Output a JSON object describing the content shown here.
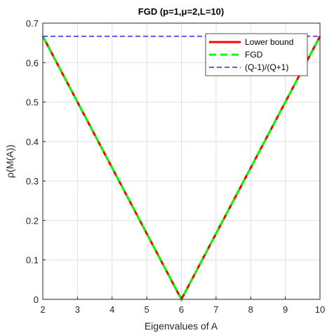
{
  "chart_data": {
    "type": "line",
    "title": "FGD (p=1,μ=2,L=10)",
    "xlabel": "Eigenvalues of A",
    "ylabel": "ρ(M(A))",
    "xlim": [
      2,
      10
    ],
    "ylim": [
      0,
      0.7
    ],
    "xticks": [
      2,
      3,
      4,
      5,
      6,
      7,
      8,
      9,
      10
    ],
    "yticks": [
      0,
      0.1,
      0.2,
      0.3,
      0.4,
      0.5,
      0.6,
      0.7
    ],
    "xtick_labels": [
      "2",
      "3",
      "4",
      "5",
      "6",
      "7",
      "8",
      "9",
      "10"
    ],
    "ytick_labels": [
      "0",
      "0.1",
      "0.2",
      "0.3",
      "0.4",
      "0.5",
      "0.6",
      "0.7"
    ],
    "grid": true,
    "legend_position": "top-right",
    "series": [
      {
        "name": "Lower bound",
        "color": "#ff0000",
        "style": "solid",
        "x": [
          2,
          6,
          10
        ],
        "y": [
          0.6667,
          0,
          0.6667
        ]
      },
      {
        "name": "FGD",
        "color": "#00ff00",
        "style": "dashed",
        "x": [
          2,
          6,
          10
        ],
        "y": [
          0.6667,
          0,
          0.6667
        ]
      },
      {
        "name": "(Q-1)/(Q+1)",
        "color": "#0000ff",
        "style": "dashed-thin",
        "x": [
          2,
          10
        ],
        "y": [
          0.6667,
          0.6667
        ]
      }
    ]
  }
}
